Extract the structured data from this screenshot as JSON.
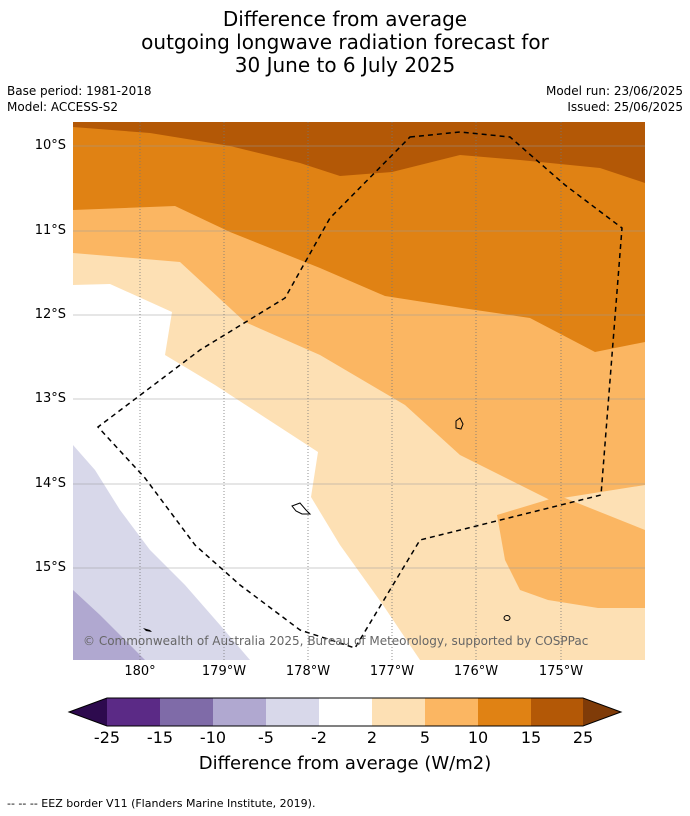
{
  "title": {
    "line1": "Difference from average",
    "line2": "outgoing longwave radiation forecast for",
    "line3": "30 June to 6 July 2025"
  },
  "meta": {
    "base_period": "Base period: 1981-2018",
    "model": "Model: ACCESS-S2",
    "model_run": "Model run: 23/06/2025",
    "issued": "Issued: 25/06/2025"
  },
  "map": {
    "lat_labels": [
      "10°S",
      "11°S",
      "12°S",
      "13°S",
      "14°S",
      "15°S"
    ],
    "lon_labels": [
      "180°",
      "179°W",
      "178°W",
      "177°W",
      "176°W",
      "175°W"
    ],
    "copyright": "© Commonwealth of Australia 2025, Bureau of Meteorology, supported by COSPPac"
  },
  "colorbar": {
    "labels": [
      "-25",
      "-15",
      "-10",
      "-5",
      "-2",
      "2",
      "5",
      "10",
      "15",
      "25"
    ],
    "colors": [
      "#2d0a4e",
      "#5b2a86",
      "#7f6ba8",
      "#b0a8d0",
      "#d8d8ea",
      "#ffffff",
      "#fde0b4",
      "#fbb662",
      "#e08214",
      "#b35806",
      "#7f3b08"
    ],
    "title": "Difference from average (W/m2)"
  },
  "footer": "--  --  -- EEZ border V11 (Flanders Marine Institute, 2019)."
}
